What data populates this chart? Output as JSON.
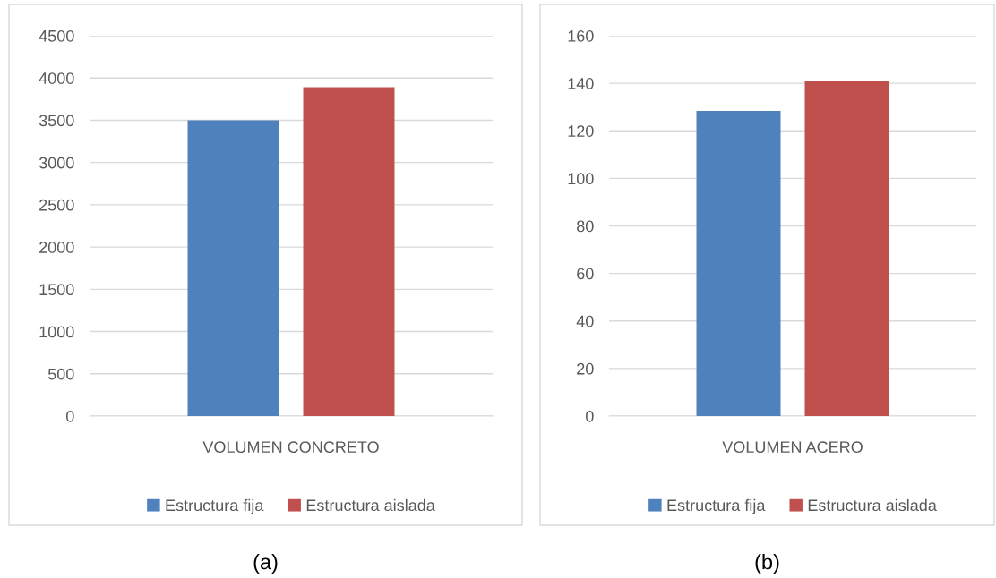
{
  "chart_data": [
    {
      "type": "bar",
      "categories": [
        "VOLUMEN CONCRETO"
      ],
      "series": [
        {
          "name": "Estructura fija",
          "color": "#4f81bd",
          "values": [
            3500
          ]
        },
        {
          "name": "Estructura aislada",
          "color": "#c0504d",
          "values": [
            3890
          ]
        }
      ],
      "ylim": [
        0,
        4500
      ],
      "yticks": [
        0,
        500,
        1000,
        1500,
        2000,
        2500,
        3000,
        3500,
        4000,
        4500
      ],
      "grid": "y",
      "legend": "bottom",
      "annotations": [
        "(a)"
      ]
    },
    {
      "type": "bar",
      "categories": [
        "VOLUMEN ACERO"
      ],
      "series": [
        {
          "name": "Estructura fija",
          "color": "#4f81bd",
          "values": [
            128.4
          ]
        },
        {
          "name": "Estructura aislada",
          "color": "#c0504d",
          "values": [
            141
          ]
        }
      ],
      "ylim": [
        0,
        160
      ],
      "yticks": [
        0,
        20,
        40,
        60,
        80,
        100,
        120,
        140,
        160
      ],
      "grid": "y",
      "legend": "bottom",
      "annotations": [
        "(b)"
      ]
    }
  ]
}
